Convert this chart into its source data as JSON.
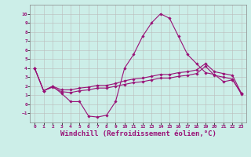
{
  "x": [
    0,
    1,
    2,
    3,
    4,
    5,
    6,
    7,
    8,
    9,
    10,
    11,
    12,
    13,
    14,
    15,
    16,
    17,
    18,
    19,
    20,
    21,
    22,
    23
  ],
  "line1": [
    4,
    1.5,
    2,
    1.2,
    0.3,
    0.3,
    -1.3,
    -1.4,
    -1.2,
    0.3,
    4.0,
    5.5,
    7.5,
    9.0,
    10.0,
    9.5,
    7.5,
    5.5,
    4.5,
    3.5,
    3.3,
    2.5,
    2.7,
    1.2
  ],
  "line2": [
    4,
    1.5,
    2.0,
    1.6,
    1.6,
    1.8,
    1.9,
    2.1,
    2.1,
    2.3,
    2.6,
    2.8,
    2.9,
    3.1,
    3.3,
    3.3,
    3.5,
    3.6,
    3.8,
    4.5,
    3.6,
    3.4,
    3.2,
    1.2
  ],
  "line3": [
    4,
    1.5,
    1.9,
    1.4,
    1.3,
    1.5,
    1.6,
    1.8,
    1.8,
    2.0,
    2.2,
    2.4,
    2.5,
    2.7,
    2.9,
    2.9,
    3.1,
    3.2,
    3.4,
    4.2,
    3.2,
    3.0,
    2.8,
    1.1
  ],
  "color": "#991177",
  "bg_color": "#cceee8",
  "grid_color": "#bbbbbb",
  "xlabel": "Windchill (Refroidissement éolien,°C)",
  "xlabel_fontsize": 6.5,
  "ylim": [
    -2,
    11
  ],
  "xlim": [
    -0.5,
    23.5
  ],
  "yticks": [
    -1,
    0,
    1,
    2,
    3,
    4,
    5,
    6,
    7,
    8,
    9,
    10
  ],
  "xticks": [
    0,
    1,
    2,
    3,
    4,
    5,
    6,
    7,
    8,
    9,
    10,
    11,
    12,
    13,
    14,
    15,
    16,
    17,
    18,
    19,
    20,
    21,
    22,
    23
  ],
  "marker": "D",
  "marker_size": 1.8,
  "linewidth": 0.8
}
